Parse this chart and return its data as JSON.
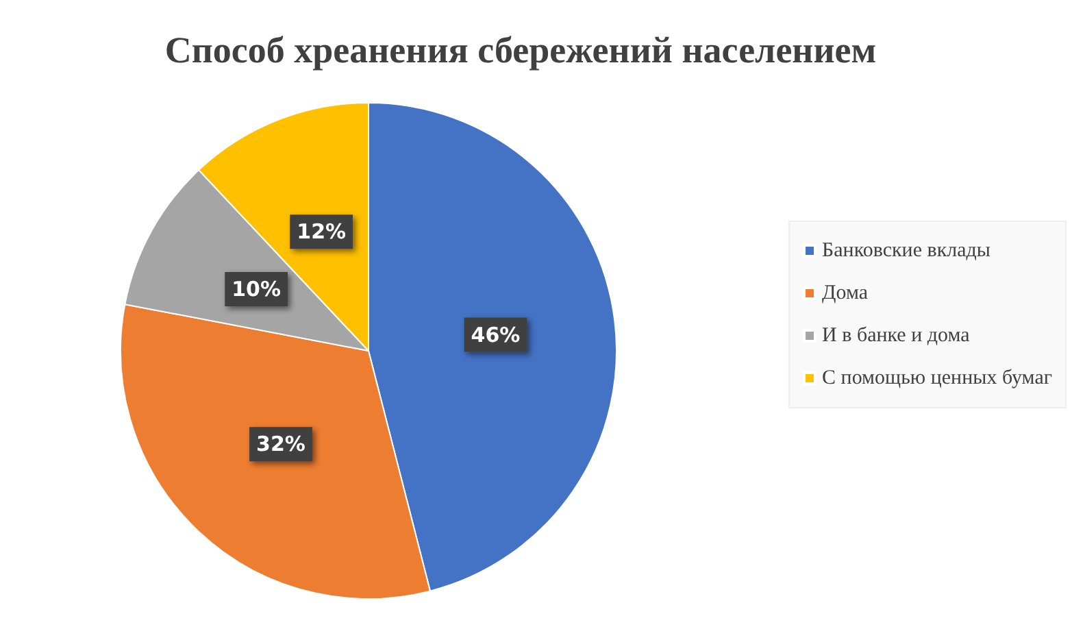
{
  "chart_data": {
    "type": "pie",
    "title": "Способ хреанения сбережений населением",
    "categories": [
      "Банковские вклады",
      "Дома",
      "И в банке и дома",
      "С помощью ценных бумаг"
    ],
    "values": [
      46,
      32,
      10,
      12
    ],
    "colors": [
      "#4472c4",
      "#ed7d31",
      "#a5a5a5",
      "#ffc000"
    ],
    "value_labels": [
      "46%",
      "32%",
      "10%",
      "12%"
    ],
    "legend": "right"
  }
}
